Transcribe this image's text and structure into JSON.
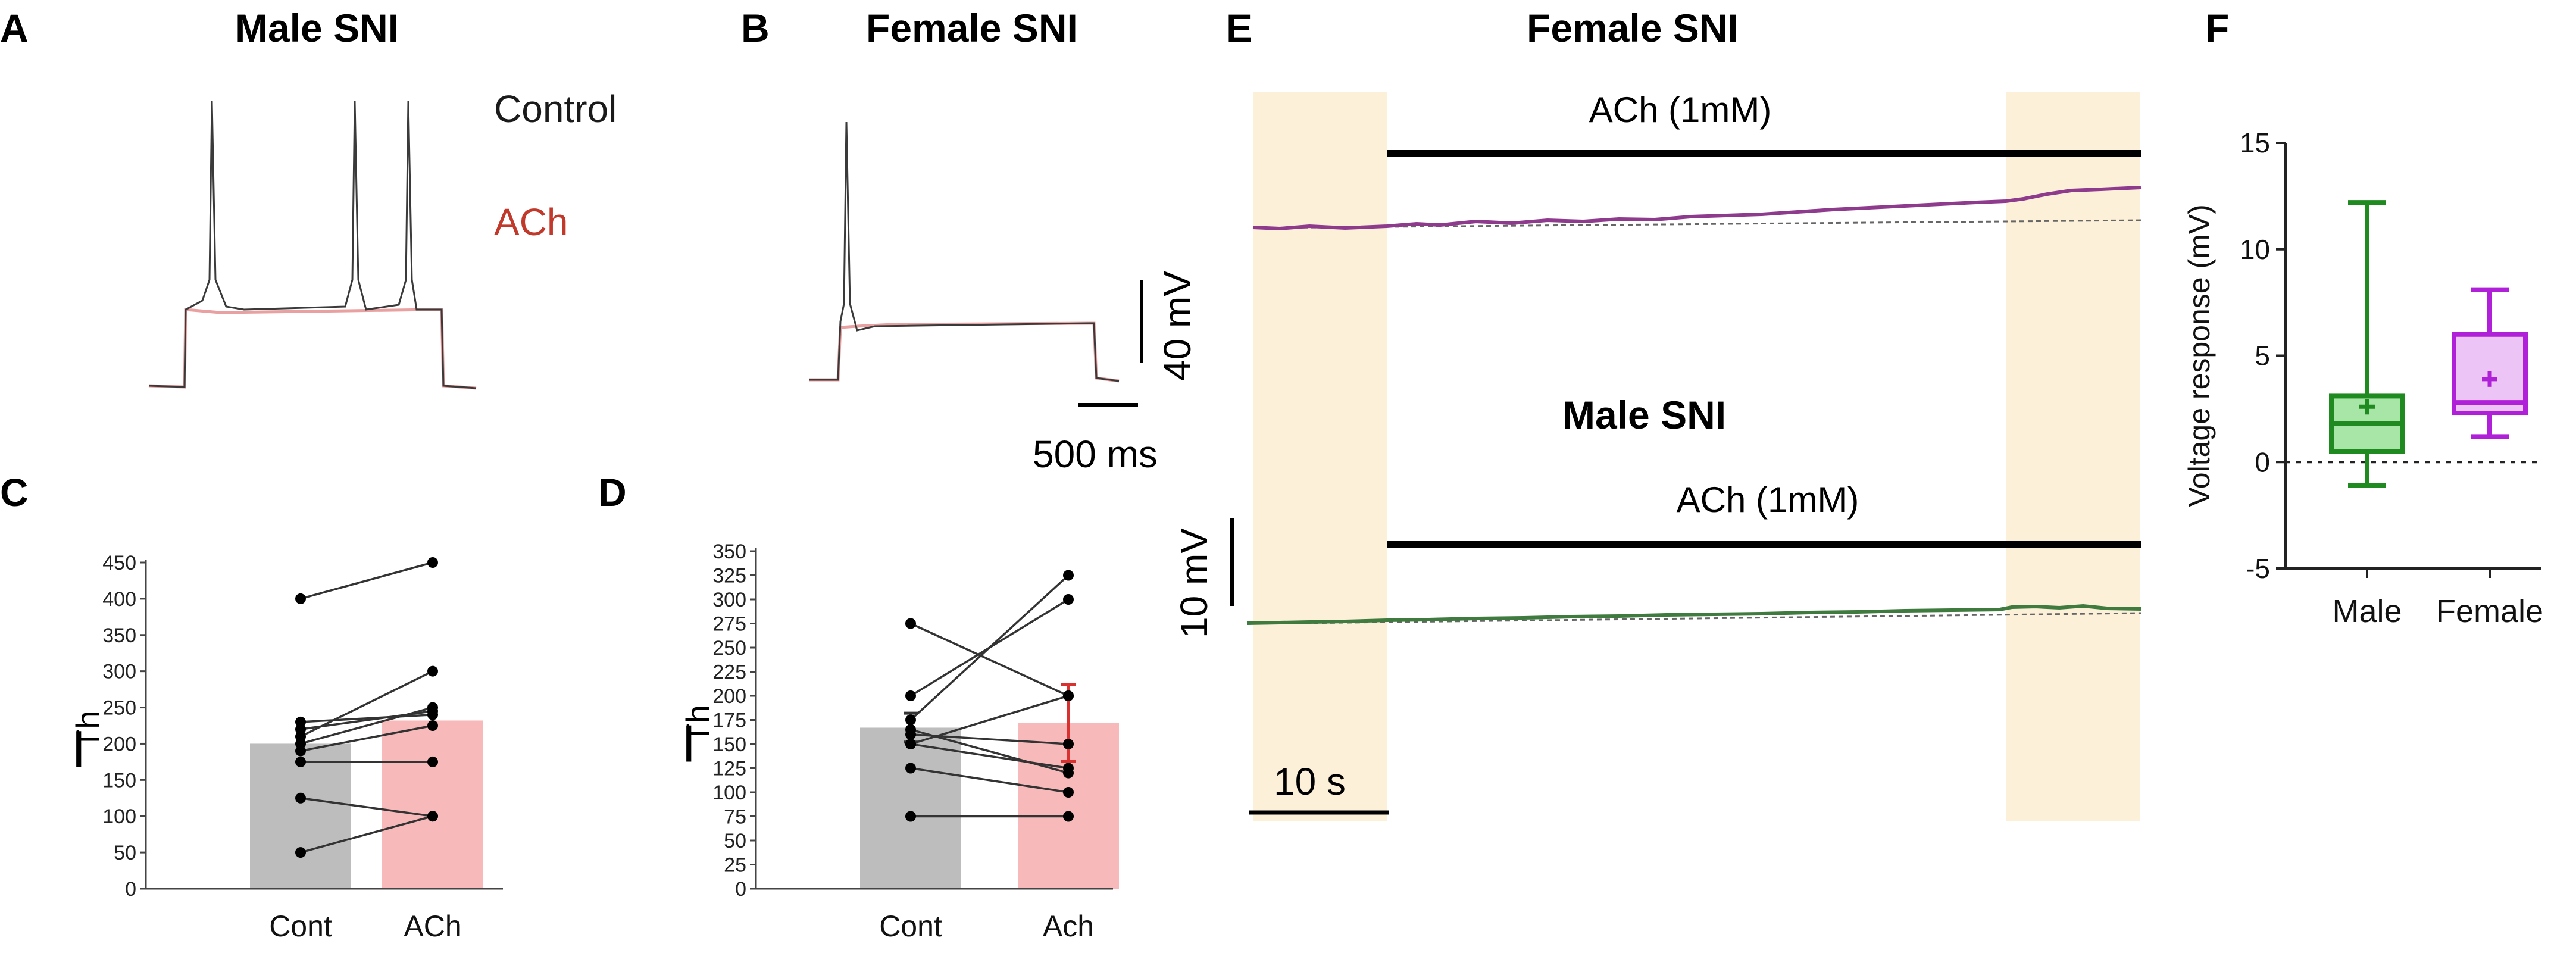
{
  "colors": {
    "control": "#3a3a3a",
    "ach": "#c0392b",
    "ach_trace": "#e8a0a0",
    "bar_control": "#bdbdbd",
    "bar_ach": "#f7b9b9",
    "shade": "#fcf0d8",
    "female_trace": "#8e3b8e",
    "male_trace": "#3f7a3f",
    "box_male_stroke": "#1f8a1f",
    "box_male_fill": "#a8e6a8",
    "box_female_stroke": "#b020d8",
    "box_female_fill": "#ecc4f5"
  },
  "panels": {
    "a": {
      "letter": "A",
      "title": "Male SNI",
      "legend_control": "Control",
      "legend_ach": "ACh"
    },
    "b": {
      "letter": "B",
      "title": "Female SNI",
      "scale_v": "40 mV",
      "scale_t": "500 ms"
    },
    "c": {
      "letter": "C"
    },
    "d": {
      "letter": "D"
    },
    "e": {
      "letter": "E",
      "title_female": "Female SNI",
      "title_male": "Male SNI",
      "drug_label_top": "ACh (1mM)",
      "drug_label_bottom": "ACh (1mM)",
      "scale_v": "10 mV",
      "scale_t": "10 s"
    },
    "f": {
      "letter": "F"
    }
  },
  "chart_data": [
    {
      "id": "C",
      "type": "bar",
      "title": "",
      "ylabel": "I",
      "ylabel_sub": "Th",
      "ylim": [
        0,
        450
      ],
      "yticks": [
        0,
        50,
        100,
        150,
        200,
        250,
        300,
        350,
        400,
        450
      ],
      "categories": [
        "Cont",
        "ACh"
      ],
      "values": [
        200,
        232
      ],
      "pairs": [
        [
          50,
          100
        ],
        [
          125,
          100
        ],
        [
          175,
          175
        ],
        [
          190,
          225
        ],
        [
          200,
          250
        ],
        [
          220,
          245
        ],
        [
          230,
          240
        ],
        [
          400,
          450
        ],
        [
          210,
          300
        ]
      ]
    },
    {
      "id": "D",
      "type": "bar",
      "title": "",
      "ylabel": "I",
      "ylabel_sub": "Th",
      "ylim": [
        0,
        350
      ],
      "yticks": [
        0,
        25,
        50,
        75,
        100,
        125,
        150,
        175,
        200,
        225,
        250,
        275,
        300,
        325,
        350
      ],
      "categories": [
        "Cont",
        "Ach"
      ],
      "values": [
        167,
        172
      ],
      "errors": [
        15,
        40
      ],
      "pairs": [
        [
          75,
          75
        ],
        [
          125,
          100
        ],
        [
          150,
          125
        ],
        [
          150,
          200
        ],
        [
          175,
          325
        ],
        [
          200,
          300
        ],
        [
          275,
          200
        ],
        [
          165,
          120
        ],
        [
          160,
          150
        ]
      ]
    },
    {
      "id": "F",
      "type": "box",
      "ylabel": "Voltage response (mV)",
      "ylim": [
        -5,
        15
      ],
      "yticks": [
        -5,
        0,
        5,
        10,
        15
      ],
      "reference_line": 0,
      "categories": [
        "Male",
        "Female"
      ],
      "boxes": [
        {
          "name": "Male",
          "min": -1.1,
          "q1": 0.5,
          "median": 1.8,
          "q3": 3.1,
          "max": 12.2,
          "mean": 2.6
        },
        {
          "name": "Female",
          "min": 1.2,
          "q1": 2.3,
          "median": 2.8,
          "q3": 6.0,
          "max": 8.1,
          "mean": 3.9
        }
      ]
    }
  ]
}
